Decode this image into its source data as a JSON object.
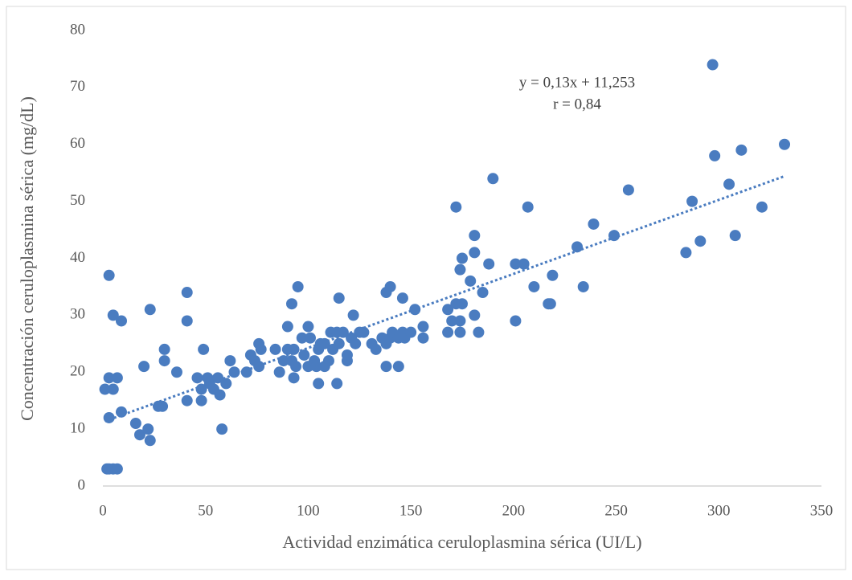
{
  "chart_data": {
    "type": "scatter",
    "x_label": "Actividad enzimática ceruloplasmina sérica (UI/L)",
    "y_label": "Concentración ceruloplasmina sérica (mg/dL)",
    "color": "#4a7cc0",
    "xlim": [
      0,
      350
    ],
    "xticks": [
      0,
      50,
      100,
      150,
      200,
      250,
      300,
      350
    ],
    "ylim": [
      0,
      80
    ],
    "yticks": [
      0,
      10,
      20,
      30,
      40,
      50,
      60,
      70,
      80
    ],
    "grid": false,
    "trendline": {
      "slope": 0.13,
      "intercept": 11.253,
      "equation": "y = 0,13x + 11,253",
      "r": 0.84,
      "r_label": "r = 0,84"
    },
    "x": [
      1,
      2,
      3,
      5,
      7,
      3,
      3,
      3,
      5,
      5,
      7,
      9,
      9,
      16,
      18,
      20,
      22,
      23,
      23,
      27,
      29,
      30,
      30,
      36,
      41,
      41,
      41,
      46,
      48,
      48,
      49,
      51,
      52,
      54,
      56,
      57,
      58,
      60,
      62,
      64,
      70,
      72,
      74,
      76,
      76,
      77,
      84,
      86,
      88,
      90,
      90,
      92,
      92,
      93,
      93,
      94,
      95,
      97,
      98,
      100,
      100,
      101,
      103,
      104,
      105,
      105,
      106,
      108,
      108,
      110,
      111,
      112,
      114,
      114,
      115,
      115,
      117,
      119,
      119,
      121,
      122,
      123,
      125,
      127,
      131,
      133,
      136,
      138,
      138,
      138,
      140,
      140,
      141,
      144,
      144,
      146,
      146,
      147,
      150,
      152,
      156,
      156,
      168,
      168,
      170,
      172,
      172,
      174,
      174,
      174,
      175,
      175,
      179,
      181,
      181,
      181,
      183,
      185,
      188,
      190,
      201,
      201,
      205,
      207,
      210,
      217,
      218,
      219,
      231,
      234,
      239,
      249,
      256,
      284,
      287,
      291,
      297,
      298,
      305,
      308,
      311,
      321,
      332
    ],
    "values": [
      17,
      3,
      3,
      3,
      3,
      37,
      12,
      19,
      30,
      17,
      19,
      29,
      13,
      11,
      9,
      21,
      10,
      8,
      31,
      14,
      14,
      22,
      24,
      20,
      29,
      34,
      15,
      19,
      17,
      15,
      24,
      19,
      18,
      17,
      19,
      16,
      10,
      18,
      22,
      20,
      20,
      23,
      22,
      25,
      21,
      24,
      24,
      20,
      22,
      28,
      24,
      32,
      22,
      19,
      24,
      21,
      35,
      26,
      23,
      28,
      21,
      26,
      22,
      21,
      18,
      24,
      25,
      21,
      25,
      22,
      27,
      24,
      18,
      27,
      25,
      33,
      27,
      23,
      22,
      26,
      30,
      25,
      27,
      27,
      25,
      24,
      26,
      25,
      21,
      34,
      26,
      35,
      27,
      26,
      21,
      27,
      33,
      26,
      27,
      31,
      28,
      26,
      27,
      31,
      29,
      32,
      49,
      29,
      27,
      38,
      32,
      40,
      36,
      44,
      41,
      30,
      27,
      34,
      39,
      54,
      39,
      29,
      39,
      49,
      35,
      32,
      32,
      37,
      42,
      35,
      46,
      44,
      52,
      41,
      50,
      43,
      74,
      58,
      53,
      44,
      59,
      49,
      60
    ]
  }
}
